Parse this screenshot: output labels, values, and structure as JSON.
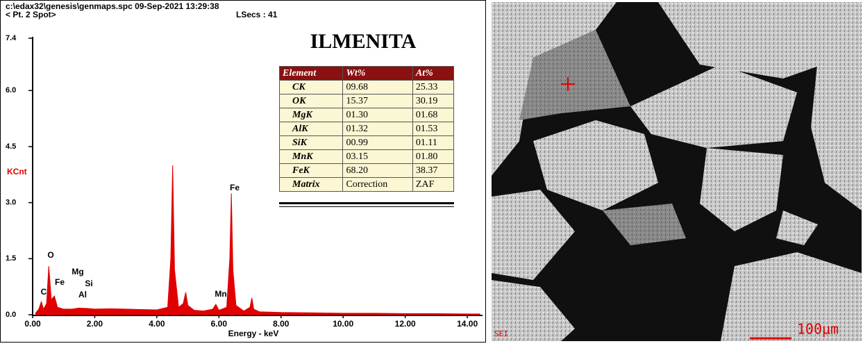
{
  "chart_data": {
    "type": "area",
    "file_info": "c:\\edax32\\genesis\\genmaps.spc  09-Sep-2021 13:29:38",
    "point_info": "< Pt.  2 Spot>",
    "lsecs": "LSecs : 41",
    "title": "ILMENITA",
    "y_label": "KCnt",
    "x_label": "Energy - keV",
    "color": "#e00000",
    "x": [
      0.1,
      0.2,
      0.28,
      0.35,
      0.45,
      0.52,
      0.6,
      0.7,
      0.8,
      1.0,
      1.25,
      1.49,
      1.74,
      2.0,
      2.5,
      3.0,
      3.5,
      4.0,
      4.35,
      4.45,
      4.51,
      4.57,
      4.7,
      4.85,
      4.93,
      5.0,
      5.2,
      5.5,
      5.8,
      5.9,
      6.0,
      6.25,
      6.35,
      6.4,
      6.45,
      6.55,
      6.8,
      7.0,
      7.06,
      7.12,
      7.3,
      8.0,
      9.0,
      10.0,
      11.0,
      12.0,
      13.0,
      14.0,
      14.4
    ],
    "values": [
      0.05,
      0.15,
      0.35,
      0.15,
      0.3,
      1.3,
      0.4,
      0.5,
      0.2,
      0.15,
      0.15,
      0.18,
      0.17,
      0.15,
      0.16,
      0.15,
      0.14,
      0.13,
      0.2,
      1.5,
      4.0,
      1.2,
      0.2,
      0.3,
      0.6,
      0.25,
      0.12,
      0.1,
      0.15,
      0.28,
      0.12,
      0.2,
      1.5,
      3.25,
      1.2,
      0.25,
      0.1,
      0.2,
      0.45,
      0.15,
      0.08,
      0.06,
      0.05,
      0.04,
      0.04,
      0.03,
      0.03,
      0.02,
      0.02
    ],
    "xlim": [
      0,
      14.4
    ],
    "ylim": [
      0,
      7.4
    ],
    "xticks": [
      {
        "value": 0,
        "label": "0.00"
      },
      {
        "value": 2,
        "label": "2.00"
      },
      {
        "value": 4,
        "label": "4.00"
      },
      {
        "value": 6,
        "label": "6.00"
      },
      {
        "value": 8,
        "label": "8.00"
      },
      {
        "value": 10,
        "label": "10.00"
      },
      {
        "value": 12,
        "label": "12.00"
      },
      {
        "value": 14,
        "label": "14.00"
      }
    ],
    "yticks": [
      {
        "value": 0,
        "label": "0.0"
      },
      1.5,
      {
        "value": 3,
        "label": "3.0"
      },
      4.5,
      {
        "value": 6,
        "label": "6.0"
      },
      7.4
    ],
    "peak_labels": [
      "C",
      "O",
      "Fe",
      "Mg",
      "Si",
      "Al",
      "Mn",
      "Fe"
    ],
    "table": {
      "columns": [
        "Element",
        "Wt%",
        "At%"
      ],
      "rows": [
        [
          "CK",
          "09.68",
          "25.33"
        ],
        [
          "OK",
          "15.37",
          "30.19"
        ],
        [
          "MgK",
          "01.30",
          "01.68"
        ],
        [
          "AlK",
          "01.32",
          "01.53"
        ],
        [
          "SiK",
          "00.99",
          "01.11"
        ],
        [
          "MnK",
          "03.15",
          "01.80"
        ],
        [
          "FeK",
          "68.20",
          "38.37"
        ],
        [
          "Matrix",
          "Correction",
          "ZAF"
        ]
      ]
    }
  },
  "image": {
    "detector": "SEI",
    "scale_bar": "100µm"
  }
}
